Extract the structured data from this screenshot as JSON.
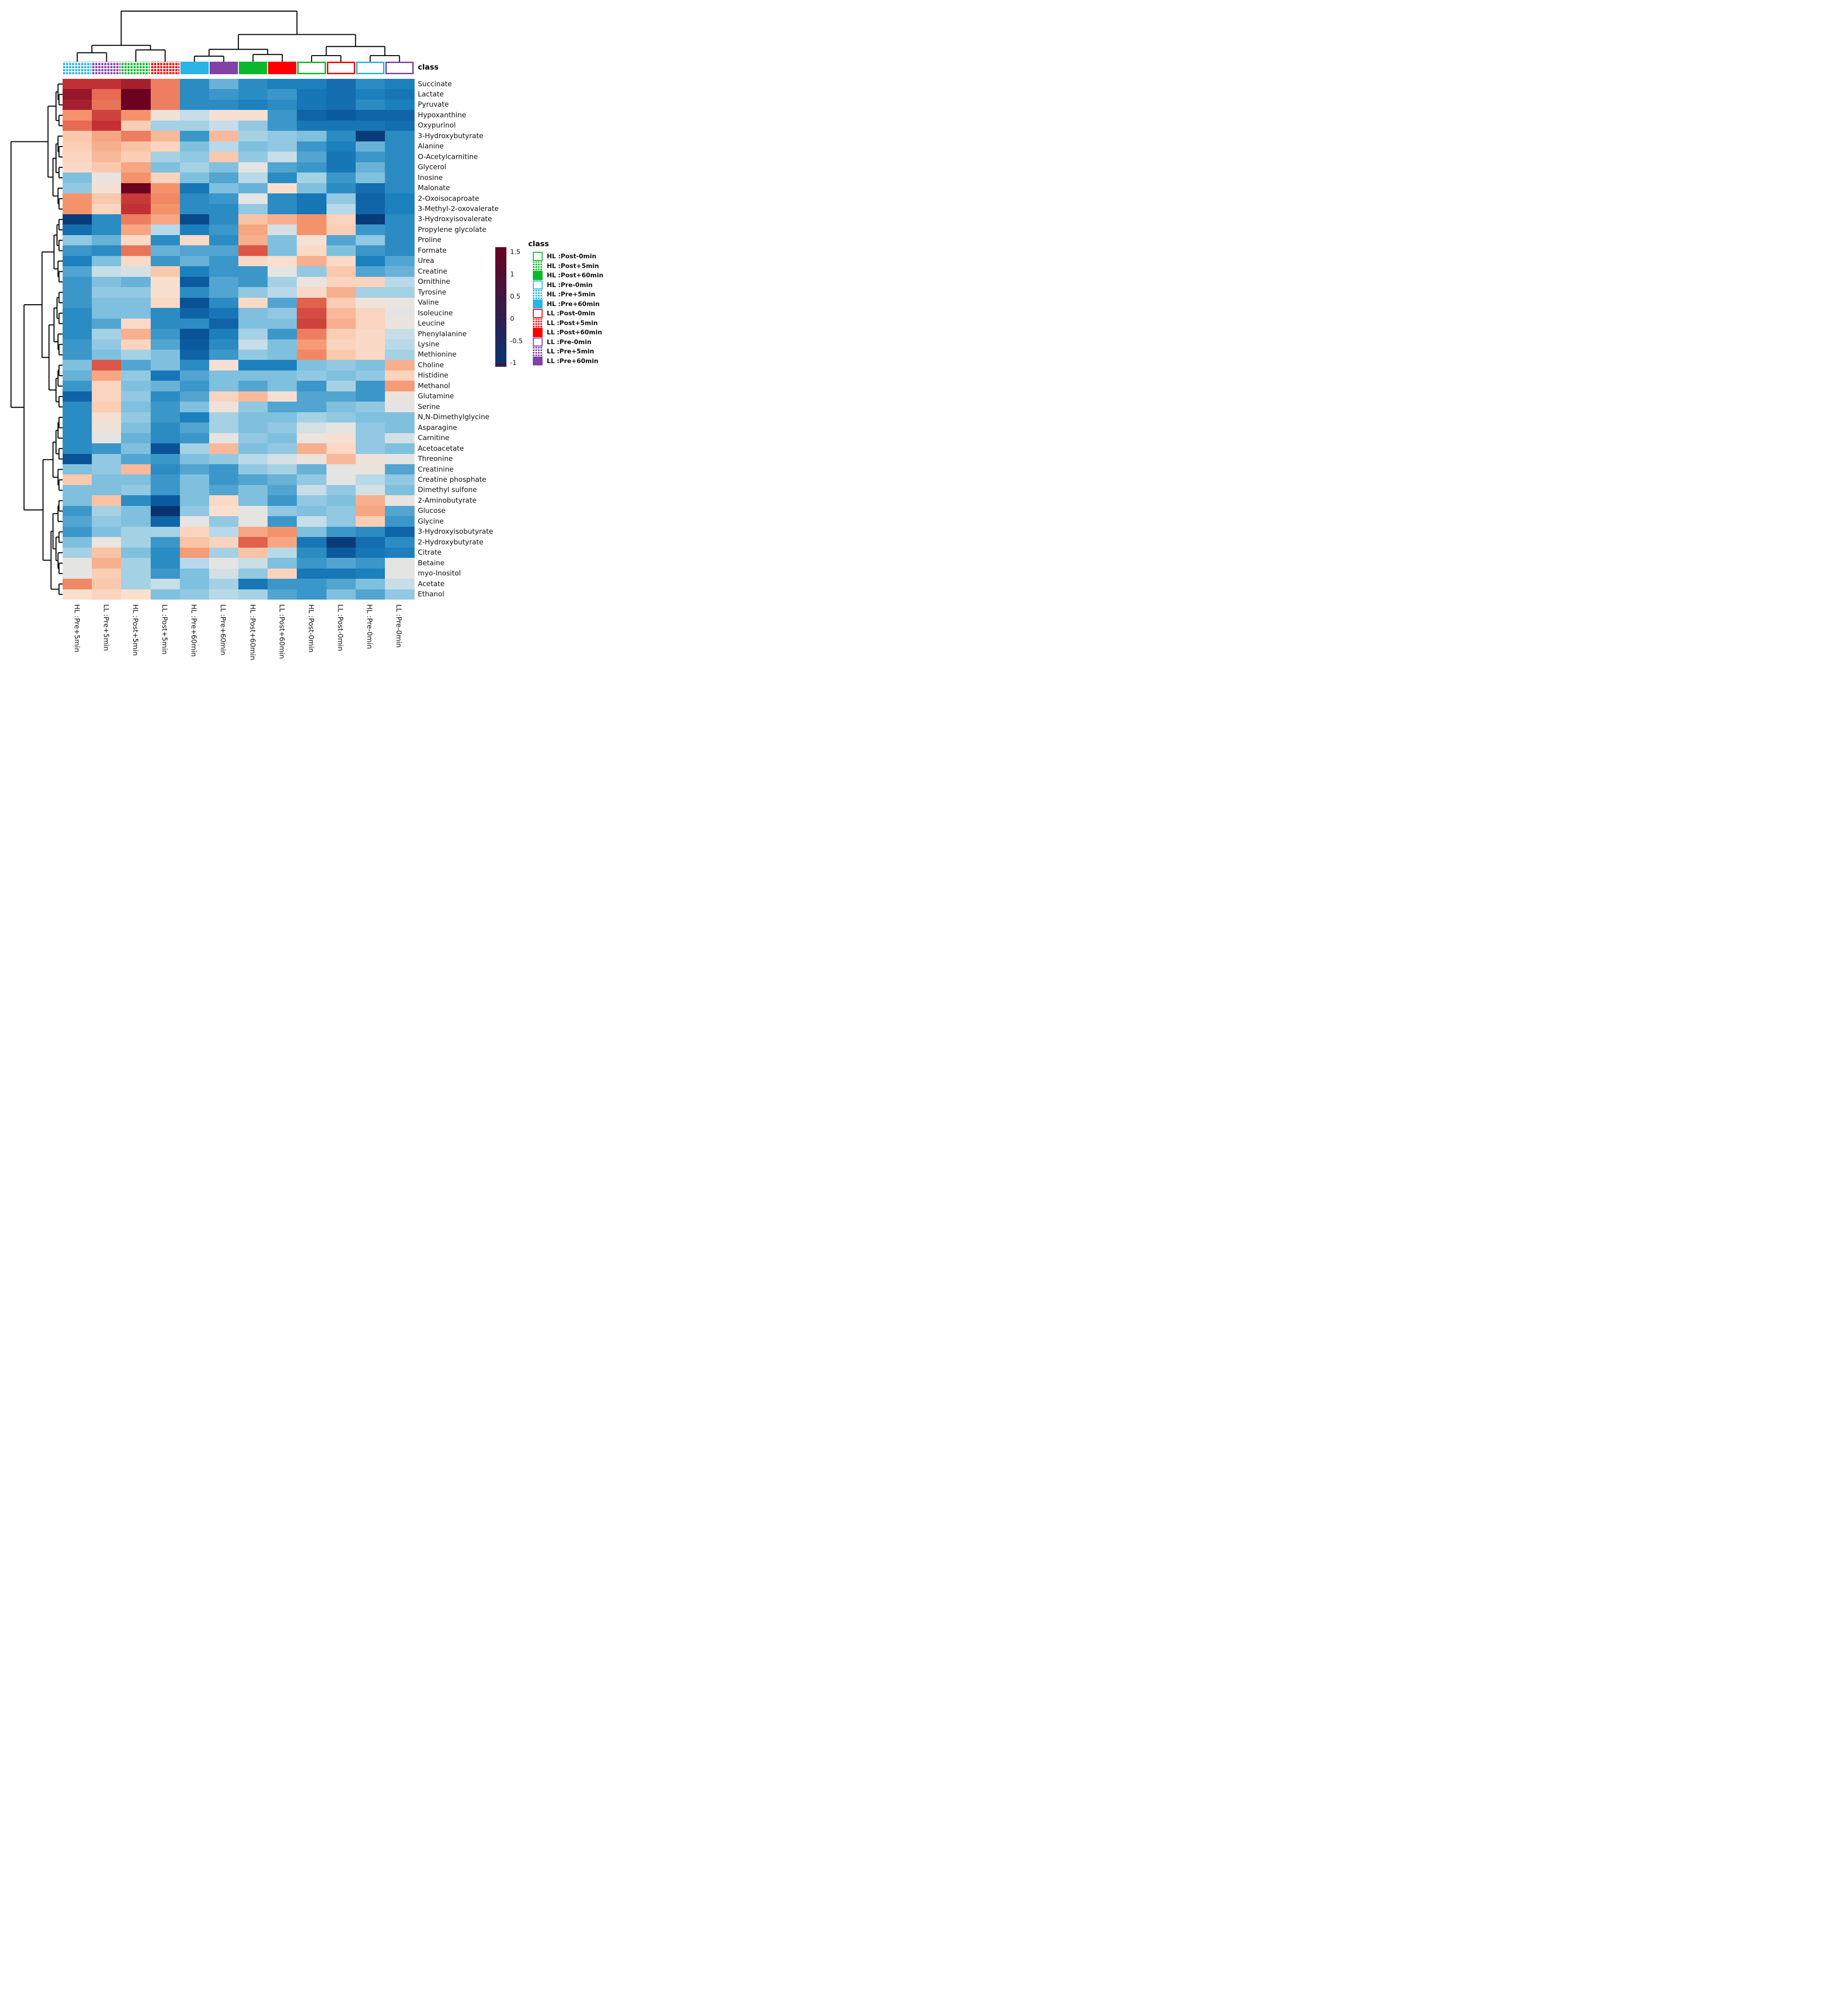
{
  "chart_data": {
    "type": "heatmap",
    "class_label": "class",
    "colormap": {
      "domain": [
        -1,
        1.5
      ],
      "stops": [
        [
          -1.0,
          "#08336e"
        ],
        [
          -0.75,
          "#0b5aa0"
        ],
        [
          -0.55,
          "#1b80bd"
        ],
        [
          -0.45,
          "#3b97c9"
        ],
        [
          -0.3,
          "#7fc0de"
        ],
        [
          -0.15,
          "#b8d9e9"
        ],
        [
          0.0,
          "#e4e4e3"
        ],
        [
          0.2,
          "#fadfce"
        ],
        [
          0.45,
          "#f9c3a5"
        ],
        [
          0.7,
          "#f4926c"
        ],
        [
          0.95,
          "#e2614b"
        ],
        [
          1.2,
          "#c22f35"
        ],
        [
          1.5,
          "#6a0220"
        ]
      ]
    },
    "colorbar": {
      "ticks": [
        "1.5",
        "1",
        "0.5",
        "0",
        "-0.5",
        "-1"
      ],
      "tick_values": [
        1.5,
        1,
        0.5,
        0,
        -0.5,
        -1
      ]
    },
    "class_colors": {
      "HL": "#29b3e6",
      "LL_pre": "#8142a8",
      "HL_post": "#0cb82b",
      "LL_post": "#fe0000"
    },
    "columns": [
      {
        "label": "HL :Pre+5min",
        "color": "#29b3e6",
        "pattern": "grid"
      },
      {
        "label": "LL :Pre+5min",
        "color": "#8142a8",
        "pattern": "grid"
      },
      {
        "label": "HL :Post+5min",
        "color": "#0cb82b",
        "pattern": "grid"
      },
      {
        "label": "LL :Post+5min",
        "color": "#fe0000",
        "pattern": "grid"
      },
      {
        "label": "HL :Pre+60min",
        "color": "#29b3e6",
        "pattern": "solid"
      },
      {
        "label": "LL :Pre+60min",
        "color": "#8142a8",
        "pattern": "solid"
      },
      {
        "label": "HL :Post+60min",
        "color": "#0cb82b",
        "pattern": "solid"
      },
      {
        "label": "LL :Post+60min",
        "color": "#fe0000",
        "pattern": "solid"
      },
      {
        "label": "HL :Post-0min",
        "color": "#0cb82b",
        "pattern": "outline"
      },
      {
        "label": "LL :Post-0min",
        "color": "#fe0000",
        "pattern": "outline"
      },
      {
        "label": "HL :Pre-0min",
        "color": "#29b3e6",
        "pattern": "outline"
      },
      {
        "label": "LL :Pre-0min",
        "color": "#8142a8",
        "pattern": "outline"
      }
    ],
    "rows": [
      "Succinate",
      "Lactate",
      "Pyruvate",
      "Hypoxanthine",
      "Oxypurinol",
      "3-Hydroxybutyrate",
      "Alanine",
      "O-Acetylcarnitine",
      "Glycerol",
      "Inosine",
      "Malonate",
      "2-Oxoisocaproate",
      "3-Methyl-2-oxovalerate",
      "3-Hydroxyisovalerate",
      "Propylene glycolate",
      "Proline",
      "Formate",
      "Urea",
      "Creatine",
      "Ornithine",
      "Tyrosine",
      "Valine",
      "Isoleucine",
      "Leucine",
      "Phenylalanine",
      "Lysine",
      "Methionine",
      "Choline",
      "Histidine",
      "Methanol",
      "Glutamine",
      "Serine",
      "N,N-Dimethylglycine",
      "Asparagine",
      "Carnitine",
      "Acetoacetate",
      "Threonine",
      "Creatinine",
      "Creatine phosphate",
      "Dimethyl sulfone",
      "2-Aminobutyrate",
      "Glucose",
      "Glycine",
      "3-Hydroxyisobutyrate",
      "2-Hydroxybutyrate",
      "Citrate",
      "Betaine",
      "myo-Inositol",
      "Acetate",
      "Ethanol"
    ],
    "values": [
      [
        1.2,
        1.2,
        1.3,
        0.8,
        -0.5,
        -0.35,
        -0.5,
        -0.55,
        -0.55,
        -0.65,
        -0.5,
        -0.55
      ],
      [
        1.35,
        0.9,
        1.5,
        0.8,
        -0.5,
        -0.45,
        -0.5,
        -0.45,
        -0.6,
        -0.65,
        -0.55,
        -0.6
      ],
      [
        1.3,
        0.85,
        1.5,
        0.8,
        -0.5,
        -0.5,
        -0.55,
        -0.5,
        -0.6,
        -0.65,
        -0.5,
        -0.55
      ],
      [
        0.7,
        1.1,
        0.7,
        0.1,
        -0.1,
        0.15,
        0.15,
        -0.45,
        -0.7,
        -0.75,
        -0.7,
        -0.7
      ],
      [
        0.9,
        1.2,
        0.35,
        -0.2,
        -0.2,
        -0.1,
        -0.25,
        -0.45,
        -0.6,
        -0.6,
        -0.6,
        -0.65
      ],
      [
        0.4,
        0.6,
        0.8,
        0.5,
        -0.45,
        0.5,
        -0.2,
        -0.25,
        -0.3,
        -0.5,
        -0.95,
        -0.5
      ],
      [
        0.35,
        0.55,
        0.45,
        0.3,
        -0.3,
        -0.15,
        -0.3,
        -0.25,
        -0.45,
        -0.55,
        -0.35,
        -0.5
      ],
      [
        0.3,
        0.5,
        0.35,
        -0.2,
        -0.25,
        0.4,
        -0.25,
        -0.1,
        -0.4,
        -0.6,
        -0.45,
        -0.5
      ],
      [
        0.25,
        0.4,
        0.6,
        -0.3,
        -0.2,
        -0.3,
        0.0,
        -0.4,
        -0.45,
        -0.6,
        -0.35,
        -0.5
      ],
      [
        -0.3,
        0.05,
        0.7,
        0.3,
        -0.3,
        -0.4,
        -0.15,
        -0.5,
        -0.2,
        -0.45,
        -0.3,
        -0.5
      ],
      [
        -0.25,
        0.15,
        1.5,
        0.7,
        -0.6,
        -0.3,
        -0.35,
        0.2,
        -0.3,
        -0.5,
        -0.65,
        -0.5
      ],
      [
        0.7,
        0.4,
        1.15,
        0.75,
        -0.5,
        -0.45,
        0.0,
        -0.5,
        -0.6,
        -0.25,
        -0.7,
        -0.55
      ],
      [
        0.7,
        0.3,
        1.2,
        0.7,
        -0.5,
        -0.5,
        -0.25,
        -0.5,
        -0.6,
        -0.15,
        -0.7,
        -0.55
      ],
      [
        -0.95,
        -0.5,
        0.8,
        0.6,
        -0.85,
        -0.5,
        0.45,
        0.55,
        0.7,
        0.3,
        -0.95,
        -0.5
      ],
      [
        -0.65,
        -0.5,
        0.6,
        -0.15,
        -0.55,
        -0.45,
        0.6,
        -0.05,
        0.7,
        0.35,
        -0.45,
        -0.5
      ],
      [
        -0.25,
        -0.35,
        0.25,
        -0.5,
        0.25,
        -0.5,
        0.55,
        -0.3,
        0.15,
        -0.4,
        -0.25,
        -0.5
      ],
      [
        -0.45,
        -0.5,
        0.85,
        -0.35,
        -0.4,
        -0.4,
        1.0,
        -0.3,
        0.25,
        -0.3,
        -0.45,
        -0.5
      ],
      [
        -0.55,
        -0.3,
        0.25,
        -0.45,
        -0.35,
        -0.45,
        0.25,
        0.2,
        0.55,
        0.25,
        -0.55,
        -0.4
      ],
      [
        -0.4,
        -0.1,
        -0.05,
        0.4,
        -0.55,
        -0.45,
        -0.45,
        0.0,
        -0.25,
        0.4,
        -0.4,
        -0.35
      ],
      [
        -0.45,
        -0.3,
        -0.35,
        0.2,
        -0.75,
        -0.4,
        -0.45,
        -0.2,
        0.05,
        0.3,
        0.3,
        -0.15
      ],
      [
        -0.45,
        -0.25,
        -0.25,
        0.2,
        -0.5,
        -0.4,
        -0.25,
        -0.15,
        0.25,
        0.55,
        -0.2,
        -0.2
      ],
      [
        -0.45,
        -0.3,
        -0.3,
        0.25,
        -0.8,
        -0.5,
        0.25,
        -0.4,
        0.95,
        0.35,
        0.1,
        0.05
      ],
      [
        -0.5,
        -0.3,
        -0.3,
        -0.5,
        -0.7,
        -0.6,
        -0.3,
        -0.25,
        1.05,
        0.5,
        0.3,
        0.0
      ],
      [
        -0.5,
        -0.4,
        0.25,
        -0.5,
        -0.5,
        -0.7,
        -0.3,
        -0.3,
        1.1,
        0.55,
        0.3,
        0.05
      ],
      [
        -0.5,
        -0.2,
        0.55,
        -0.45,
        -0.8,
        -0.55,
        -0.2,
        -0.45,
        0.8,
        0.35,
        0.25,
        -0.1
      ],
      [
        -0.45,
        -0.25,
        0.3,
        -0.4,
        -0.75,
        -0.5,
        -0.1,
        -0.3,
        0.65,
        0.3,
        0.25,
        -0.15
      ],
      [
        -0.45,
        -0.3,
        -0.2,
        -0.3,
        -0.7,
        -0.45,
        -0.25,
        -0.3,
        0.75,
        0.4,
        0.25,
        -0.2
      ],
      [
        -0.3,
        1.0,
        -0.4,
        -0.3,
        -0.5,
        0.15,
        -0.55,
        -0.55,
        -0.3,
        -0.25,
        -0.3,
        0.55
      ],
      [
        -0.35,
        0.6,
        -0.25,
        -0.6,
        -0.4,
        -0.3,
        -0.3,
        -0.3,
        -0.25,
        -0.3,
        -0.25,
        0.3
      ],
      [
        -0.45,
        0.3,
        -0.3,
        -0.35,
        -0.45,
        -0.3,
        -0.4,
        -0.3,
        -0.45,
        -0.2,
        -0.45,
        0.65
      ],
      [
        -0.7,
        0.3,
        -0.25,
        -0.5,
        -0.4,
        0.3,
        0.5,
        0.15,
        -0.4,
        -0.4,
        -0.45,
        0.05
      ],
      [
        -0.5,
        0.35,
        -0.3,
        -0.45,
        -0.3,
        0.1,
        -0.25,
        -0.4,
        -0.4,
        -0.3,
        -0.25,
        0.0
      ],
      [
        -0.5,
        0.15,
        -0.25,
        -0.45,
        -0.55,
        -0.2,
        -0.3,
        -0.3,
        -0.2,
        -0.25,
        -0.3,
        -0.3
      ],
      [
        -0.5,
        0.1,
        -0.3,
        -0.5,
        -0.4,
        -0.2,
        -0.3,
        -0.25,
        -0.05,
        0.0,
        -0.25,
        -0.3
      ],
      [
        -0.5,
        0.0,
        -0.35,
        -0.5,
        -0.45,
        0.0,
        -0.25,
        -0.3,
        0.05,
        0.15,
        -0.25,
        -0.05
      ],
      [
        -0.5,
        -0.45,
        -0.3,
        -0.8,
        -0.2,
        0.5,
        -0.3,
        -0.25,
        0.55,
        0.25,
        -0.25,
        -0.3
      ],
      [
        -0.8,
        -0.25,
        -0.4,
        -0.45,
        -0.3,
        -0.25,
        -0.15,
        -0.05,
        0.05,
        0.5,
        0.1,
        0.0
      ],
      [
        -0.3,
        -0.25,
        0.5,
        -0.5,
        -0.4,
        -0.45,
        -0.25,
        -0.2,
        -0.35,
        0.0,
        0.05,
        -0.4
      ],
      [
        0.4,
        -0.3,
        -0.3,
        -0.45,
        -0.3,
        -0.45,
        -0.4,
        -0.35,
        -0.25,
        0.0,
        -0.15,
        -0.25
      ],
      [
        -0.3,
        -0.3,
        -0.25,
        -0.45,
        -0.3,
        -0.4,
        -0.3,
        -0.4,
        -0.1,
        -0.25,
        -0.05,
        -0.3
      ],
      [
        -0.3,
        0.45,
        -0.5,
        -0.75,
        -0.3,
        0.25,
        -0.3,
        -0.45,
        -0.25,
        -0.3,
        0.55,
        0.05
      ],
      [
        -0.45,
        -0.2,
        -0.3,
        -1.0,
        -0.25,
        0.2,
        0.0,
        -0.25,
        -0.3,
        -0.25,
        0.6,
        -0.4
      ],
      [
        -0.4,
        -0.25,
        -0.3,
        -0.7,
        0.0,
        -0.25,
        0.0,
        -0.45,
        -0.1,
        -0.25,
        0.35,
        -0.45
      ],
      [
        -0.45,
        -0.3,
        -0.2,
        -0.2,
        0.3,
        -0.15,
        0.6,
        0.7,
        -0.3,
        -0.45,
        -0.5,
        -0.7
      ],
      [
        -0.3,
        0.05,
        -0.2,
        -0.45,
        0.45,
        0.3,
        0.95,
        0.6,
        -0.6,
        -0.95,
        -0.65,
        -0.5
      ],
      [
        -0.2,
        0.45,
        -0.3,
        -0.5,
        0.65,
        -0.2,
        0.45,
        -0.15,
        -0.5,
        -0.75,
        -0.6,
        -0.55
      ],
      [
        0.0,
        0.55,
        -0.2,
        -0.5,
        -0.15,
        0.0,
        -0.1,
        -0.3,
        -0.45,
        -0.4,
        -0.45,
        0.0
      ],
      [
        0.0,
        0.35,
        -0.2,
        -0.45,
        -0.3,
        -0.05,
        -0.25,
        0.3,
        -0.6,
        -0.6,
        -0.55,
        0.0
      ],
      [
        0.75,
        0.4,
        -0.2,
        -0.1,
        -0.3,
        -0.2,
        -0.6,
        -0.45,
        -0.45,
        -0.4,
        -0.3,
        -0.1
      ],
      [
        0.2,
        0.3,
        0.2,
        -0.3,
        -0.25,
        -0.15,
        -0.2,
        -0.4,
        -0.45,
        -0.3,
        -0.4,
        -0.25
      ]
    ],
    "legend": {
      "title": "class",
      "entries": [
        {
          "label": "HL :Post-0min",
          "color": "#0cb82b",
          "pattern": "outline"
        },
        {
          "label": "HL :Post+5min",
          "color": "#0cb82b",
          "pattern": "grid"
        },
        {
          "label": "HL :Post+60min",
          "color": "#0cb82b",
          "pattern": "solid"
        },
        {
          "label": "HL :Pre-0min",
          "color": "#29b3e6",
          "pattern": "outline"
        },
        {
          "label": "HL :Pre+5min",
          "color": "#29b3e6",
          "pattern": "grid"
        },
        {
          "label": "HL :Pre+60min",
          "color": "#29b3e6",
          "pattern": "solid"
        },
        {
          "label": "LL :Post-0min",
          "color": "#fe0000",
          "pattern": "outline"
        },
        {
          "label": "LL :Post+5min",
          "color": "#fe0000",
          "pattern": "grid"
        },
        {
          "label": "LL :Post+60min",
          "color": "#fe0000",
          "pattern": "solid"
        },
        {
          "label": "LL :Pre-0min",
          "color": "#8142a8",
          "pattern": "outline"
        },
        {
          "label": "LL :Pre+5min",
          "color": "#8142a8",
          "pattern": "grid"
        },
        {
          "label": "LL :Pre+60min",
          "color": "#8142a8",
          "pattern": "solid"
        }
      ]
    },
    "col_dendrogram": {
      "h": 0.13,
      "c": [
        {
          "h": 0.73,
          "c": [
            {
              "h": 0.86,
              "c": [
                0,
                1
              ]
            },
            {
              "h": 0.81,
              "c": [
                2,
                3
              ]
            }
          ]
        },
        {
          "h": 0.54,
          "c": [
            {
              "h": 0.8,
              "c": [
                {
                  "h": 0.92,
                  "c": [
                    4,
                    5
                  ]
                },
                {
                  "h": 0.89,
                  "c": [
                    6,
                    7
                  ]
                }
              ]
            },
            {
              "h": 0.75,
              "c": [
                {
                  "h": 0.91,
                  "c": [
                    8,
                    9
                  ]
                },
                {
                  "h": 0.91,
                  "c": [
                    10,
                    11
                  ]
                }
              ]
            }
          ]
        }
      ]
    },
    "row_dendrogram": [
      [
        [
          [
            0,
            [
              1,
              2
            ]
          ],
          [
            3,
            4
          ]
        ],
        [
          [
            [
              5,
              [
                6,
                7
              ]
            ],
            [
              8,
              9
            ]
          ],
          [
            10,
            [
              11,
              12
            ]
          ]
        ]
      ],
      [
        [
          [
            [
              [
                13,
                14
              ],
              [
                15,
                16
              ]
            ],
            [
              17,
              [
                18,
                19
              ]
            ]
          ],
          [
            [
              [
                [
                  20,
                  21
                ],
                [
                  22,
                  23
                ]
              ],
              [
                24,
                [
                  25,
                  26
                ]
              ]
            ],
            [
              [
                [
                  27,
                  28
                ],
                29
              ],
              [
                30,
                31
              ]
            ]
          ]
        ],
        [
          [
            [
              [
                [
                  32,
                  33
                ],
                34
              ],
              [
                35,
                36
              ]
            ],
            [
              37,
              [
                38,
                39
              ]
            ]
          ],
          [
            [
              [
                [
                  40,
                  41
                ],
                42
              ],
              [
                [
                  43,
                  44
                ],
                [
                  45,
                  [
                    46,
                    47
                  ]
                ]
              ]
            ],
            [
              48,
              49
            ]
          ]
        ]
      ]
    ],
    "layout_hints": {
      "legend_position": "right",
      "grid": false
    }
  }
}
